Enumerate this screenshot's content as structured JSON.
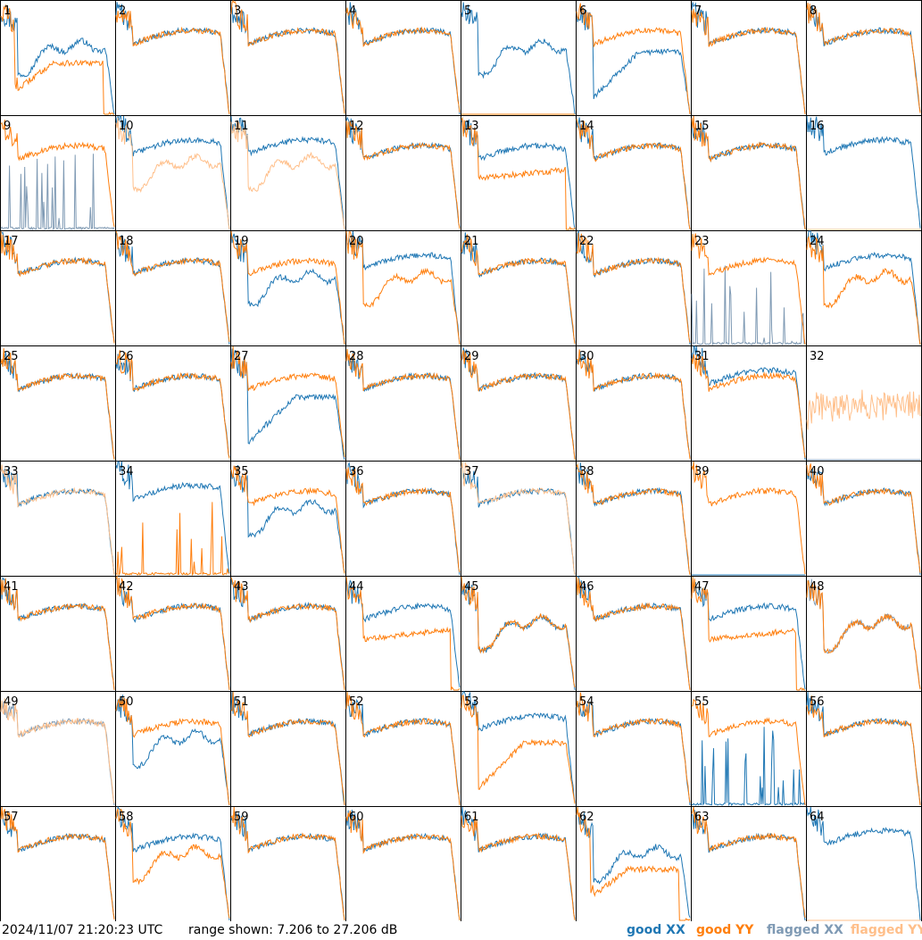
{
  "footer": {
    "timestamp": "2024/11/07 21:20:23 UTC",
    "range_text": "range shown: 7.206 to 27.206 dB"
  },
  "legend": {
    "good_xx": "good XX",
    "good_yy": "good YY",
    "flagged_xx": "flagged XX",
    "flagged_yy": "flagged YY"
  },
  "colors": {
    "good_xx": "#1f77b4",
    "good_yy": "#ff7f0e",
    "flagged_xx": "#7f9ab4",
    "flagged_yy": "#ffbf8a"
  },
  "chart_data": {
    "type": "line",
    "layout": "8x8 grid of small multiples",
    "ylim": [
      7.206,
      27.206
    ],
    "yunit": "dB",
    "panels": [
      {
        "label": "1",
        "xx": "good",
        "yy": "good",
        "shape_xx": "dip",
        "shape_yy": "deep_dip_drop"
      },
      {
        "label": "2",
        "xx": "good",
        "yy": "good",
        "shape_xx": "normal",
        "shape_yy": "normal"
      },
      {
        "label": "3",
        "xx": "good",
        "yy": "good",
        "shape_xx": "normal",
        "shape_yy": "normal"
      },
      {
        "label": "4",
        "xx": "good",
        "yy": "good",
        "shape_xx": "normal",
        "shape_yy": "normal"
      },
      {
        "label": "5",
        "xx": "good",
        "yy": "good",
        "shape_xx": "dip",
        "shape_yy": "dead"
      },
      {
        "label": "6",
        "xx": "good",
        "yy": "good",
        "shape_xx": "deep_dip",
        "shape_yy": "normal"
      },
      {
        "label": "7",
        "xx": "good",
        "yy": "good",
        "shape_xx": "normal",
        "shape_yy": "normal"
      },
      {
        "label": "8",
        "xx": "good",
        "yy": "good",
        "shape_xx": "normal",
        "shape_yy": "normal"
      },
      {
        "label": "9",
        "xx": "flagged",
        "yy": "good",
        "shape_xx": "dead_spiky",
        "shape_yy": "normal"
      },
      {
        "label": "10",
        "xx": "good",
        "yy": "flagged",
        "shape_xx": "normal_high",
        "shape_yy": "dip"
      },
      {
        "label": "11",
        "xx": "good",
        "yy": "flagged",
        "shape_xx": "normal_high",
        "shape_yy": "dip"
      },
      {
        "label": "12",
        "xx": "good",
        "yy": "good",
        "shape_xx": "normal",
        "shape_yy": "normal"
      },
      {
        "label": "13",
        "xx": "good",
        "yy": "good",
        "shape_xx": "normal",
        "shape_yy": "dip_drop"
      },
      {
        "label": "14",
        "xx": "good",
        "yy": "good",
        "shape_xx": "normal",
        "shape_yy": "normal"
      },
      {
        "label": "15",
        "xx": "good",
        "yy": "good",
        "shape_xx": "normal",
        "shape_yy": "normal"
      },
      {
        "label": "16",
        "xx": "good",
        "yy": "flagged",
        "shape_xx": "normal_high",
        "shape_yy": "dead"
      },
      {
        "label": "17",
        "xx": "good",
        "yy": "good",
        "shape_xx": "normal",
        "shape_yy": "normal"
      },
      {
        "label": "18",
        "xx": "good",
        "yy": "good",
        "shape_xx": "normal",
        "shape_yy": "normal"
      },
      {
        "label": "19",
        "xx": "good",
        "yy": "good",
        "shape_xx": "dip",
        "shape_yy": "normal"
      },
      {
        "label": "20",
        "xx": "good",
        "yy": "good",
        "shape_xx": "normal_high",
        "shape_yy": "dip"
      },
      {
        "label": "21",
        "xx": "good",
        "yy": "good",
        "shape_xx": "normal",
        "shape_yy": "normal"
      },
      {
        "label": "22",
        "xx": "good",
        "yy": "good",
        "shape_xx": "normal",
        "shape_yy": "normal"
      },
      {
        "label": "23",
        "xx": "flagged",
        "yy": "good",
        "shape_xx": "dead_spiky",
        "shape_yy": "normal"
      },
      {
        "label": "24",
        "xx": "good",
        "yy": "good",
        "shape_xx": "normal_high",
        "shape_yy": "dip"
      },
      {
        "label": "25",
        "xx": "good",
        "yy": "good",
        "shape_xx": "normal",
        "shape_yy": "normal"
      },
      {
        "label": "26",
        "xx": "good",
        "yy": "good",
        "shape_xx": "normal",
        "shape_yy": "normal"
      },
      {
        "label": "27",
        "xx": "good",
        "yy": "good",
        "shape_xx": "deep_dip",
        "shape_yy": "normal"
      },
      {
        "label": "28",
        "xx": "good",
        "yy": "good",
        "shape_xx": "normal",
        "shape_yy": "normal"
      },
      {
        "label": "29",
        "xx": "good",
        "yy": "good",
        "shape_xx": "normal",
        "shape_yy": "normal"
      },
      {
        "label": "30",
        "xx": "good",
        "yy": "good",
        "shape_xx": "normal",
        "shape_yy": "normal"
      },
      {
        "label": "31",
        "xx": "good",
        "yy": "good",
        "shape_xx": "normal_high",
        "shape_yy": "normal"
      },
      {
        "label": "32",
        "xx": "flagged",
        "yy": "flagged",
        "shape_xx": "dead",
        "shape_yy": "spiky"
      },
      {
        "label": "33",
        "xx": "good",
        "yy": "flagged",
        "shape_xx": "normal",
        "shape_yy": "normal"
      },
      {
        "label": "34",
        "xx": "good",
        "yy": "good",
        "shape_xx": "normal_high",
        "shape_yy": "dead_spiky"
      },
      {
        "label": "35",
        "xx": "good",
        "yy": "good",
        "shape_xx": "dip",
        "shape_yy": "normal"
      },
      {
        "label": "36",
        "xx": "good",
        "yy": "good",
        "shape_xx": "normal",
        "shape_yy": "normal"
      },
      {
        "label": "37",
        "xx": "good",
        "yy": "flagged",
        "shape_xx": "normal",
        "shape_yy": "normal"
      },
      {
        "label": "38",
        "xx": "good",
        "yy": "good",
        "shape_xx": "normal",
        "shape_yy": "normal"
      },
      {
        "label": "39",
        "xx": "good",
        "yy": "good",
        "shape_xx": "dead",
        "shape_yy": "normal"
      },
      {
        "label": "40",
        "xx": "good",
        "yy": "good",
        "shape_xx": "normal",
        "shape_yy": "normal"
      },
      {
        "label": "41",
        "xx": "good",
        "yy": "good",
        "shape_xx": "normal",
        "shape_yy": "normal"
      },
      {
        "label": "42",
        "xx": "good",
        "yy": "good",
        "shape_xx": "normal",
        "shape_yy": "normal"
      },
      {
        "label": "43",
        "xx": "good",
        "yy": "good",
        "shape_xx": "normal",
        "shape_yy": "normal"
      },
      {
        "label": "44",
        "xx": "good",
        "yy": "good",
        "shape_xx": "normal",
        "shape_yy": "dip_drop"
      },
      {
        "label": "45",
        "xx": "good",
        "yy": "good",
        "shape_xx": "dip",
        "shape_yy": "dip"
      },
      {
        "label": "46",
        "xx": "good",
        "yy": "good",
        "shape_xx": "normal",
        "shape_yy": "normal"
      },
      {
        "label": "47",
        "xx": "good",
        "yy": "good",
        "shape_xx": "normal",
        "shape_yy": "dip_drop"
      },
      {
        "label": "48",
        "xx": "flagged",
        "yy": "good",
        "shape_xx": "dip",
        "shape_yy": "dip"
      },
      {
        "label": "49",
        "xx": "flagged",
        "yy": "flagged",
        "shape_xx": "normal",
        "shape_yy": "normal"
      },
      {
        "label": "50",
        "xx": "good",
        "yy": "good",
        "shape_xx": "dip",
        "shape_yy": "normal"
      },
      {
        "label": "51",
        "xx": "good",
        "yy": "good",
        "shape_xx": "normal",
        "shape_yy": "normal"
      },
      {
        "label": "52",
        "xx": "good",
        "yy": "good",
        "shape_xx": "normal",
        "shape_yy": "normal"
      },
      {
        "label": "53",
        "xx": "good",
        "yy": "good",
        "shape_xx": "normal_high",
        "shape_yy": "deep_dip"
      },
      {
        "label": "54",
        "xx": "good",
        "yy": "good",
        "shape_xx": "normal",
        "shape_yy": "normal"
      },
      {
        "label": "55",
        "xx": "good",
        "yy": "good",
        "shape_xx": "dead_spiky",
        "shape_yy": "normal"
      },
      {
        "label": "56",
        "xx": "good",
        "yy": "good",
        "shape_xx": "normal",
        "shape_yy": "normal"
      },
      {
        "label": "57",
        "xx": "good",
        "yy": "good",
        "shape_xx": "normal",
        "shape_yy": "normal"
      },
      {
        "label": "58",
        "xx": "good",
        "yy": "good",
        "shape_xx": "normal",
        "shape_yy": "dip"
      },
      {
        "label": "59",
        "xx": "good",
        "yy": "good",
        "shape_xx": "normal",
        "shape_yy": "normal"
      },
      {
        "label": "60",
        "xx": "good",
        "yy": "good",
        "shape_xx": "normal",
        "shape_yy": "normal"
      },
      {
        "label": "61",
        "xx": "good",
        "yy": "good",
        "shape_xx": "normal",
        "shape_yy": "normal"
      },
      {
        "label": "62",
        "xx": "good",
        "yy": "good",
        "shape_xx": "dip",
        "shape_yy": "deep_dip_drop"
      },
      {
        "label": "63",
        "xx": "good",
        "yy": "good",
        "shape_xx": "normal",
        "shape_yy": "normal"
      },
      {
        "label": "64",
        "xx": "good",
        "yy": "flagged",
        "shape_xx": "normal_high",
        "shape_yy": "dead"
      }
    ]
  }
}
